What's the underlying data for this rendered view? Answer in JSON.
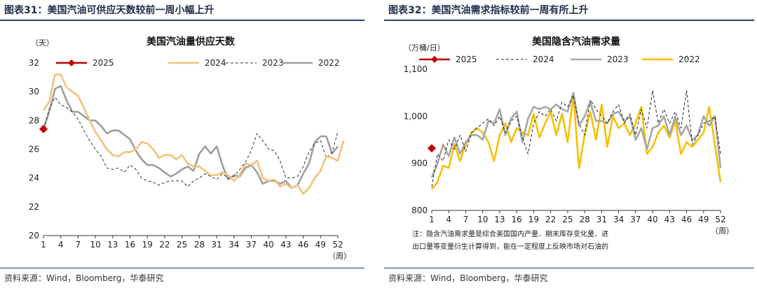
{
  "left": {
    "figure_title": "图表31：美国汽油可供应天数较前一周小幅上升",
    "source": "资料来源：Wind，Bloomberg，华泰研究",
    "unit_label": "（天）",
    "x_unit_label": "（周）"
  },
  "right": {
    "figure_title": "图表32：美国汽油需求指标较前一周有所上升",
    "source": "资料来源：Wind，Bloomberg，华泰研究",
    "unit_label": "（万桶/日）",
    "x_unit_label": "（周）",
    "note_line1": "注：隐含汽油需求量是综合美国国内产量、期末库存变化量、进",
    "note_line2": "出口量等变量衍生计算得到，能在一定程度上反映市场对石油的"
  },
  "chart_data": [
    {
      "type": "line",
      "title": "美国汽油量供应天数",
      "xlabel": "周",
      "ylabel": "天",
      "xlim": [
        1,
        52
      ],
      "ylim": [
        20,
        32
      ],
      "yticks": [
        20,
        22,
        24,
        26,
        28,
        30,
        32
      ],
      "xticks": [
        1,
        4,
        7,
        10,
        13,
        16,
        19,
        22,
        25,
        28,
        31,
        34,
        37,
        40,
        43,
        46,
        49,
        52
      ],
      "legend": [
        "2025",
        "2024",
        "2023",
        "2022"
      ],
      "series": [
        {
          "name": "2025",
          "color": "#c00000",
          "style": "marker",
          "values": [
            27.4
          ]
        },
        {
          "name": "2024",
          "color": "#f2c27a",
          "style": "solid",
          "values": [
            28.7,
            29.3,
            31.2,
            31.2,
            30.3,
            30.0,
            29.7,
            28.9,
            28.0,
            27.2,
            26.6,
            26.0,
            25.6,
            25.5,
            25.8,
            25.8,
            26.0,
            26.5,
            26.4,
            26.0,
            25.4,
            25.6,
            25.6,
            25.3,
            25.6,
            25.0,
            24.8,
            24.8,
            24.5,
            24.2,
            24.2,
            24.4,
            24.2,
            23.8,
            24.2,
            25.0,
            24.9,
            25.2,
            24.0,
            23.8,
            23.9,
            23.4,
            23.6,
            23.3,
            23.5,
            22.9,
            23.3,
            24.0,
            24.5,
            25.5,
            25.4,
            25.2,
            26.6
          ]
        },
        {
          "name": "2023",
          "color": "#333333",
          "style": "dashed",
          "values": [
            27.4,
            28.8,
            29.6,
            29.1,
            28.9,
            28.6,
            28.1,
            27.3,
            26.6,
            26.0,
            25.5,
            24.7,
            24.6,
            24.7,
            24.4,
            24.9,
            24.6,
            24.0,
            23.8,
            23.7,
            23.5,
            23.7,
            23.8,
            23.8,
            23.8,
            23.4,
            23.8,
            24.0,
            24.3,
            24.1,
            23.9,
            24.3,
            24.0,
            24.1,
            24.6,
            25.1,
            25.9,
            27.1,
            26.6,
            26.0,
            25.9,
            25.2,
            24.0,
            24.0,
            24.1,
            24.8,
            25.8,
            26.4,
            26.6,
            25.4,
            25.8,
            27.2
          ]
        },
        {
          "name": "2022",
          "color": "#9e9e9e",
          "style": "solid",
          "values": [
            27.4,
            28.6,
            30.2,
            30.4,
            29.4,
            28.6,
            28.6,
            28.3,
            28.0,
            28.0,
            27.6,
            27.1,
            27.3,
            27.3,
            27.0,
            26.7,
            25.9,
            25.3,
            24.9,
            24.9,
            24.7,
            24.4,
            24.1,
            24.3,
            24.6,
            24.8,
            24.5,
            25.7,
            26.2,
            25.7,
            26.2,
            24.9,
            23.9,
            24.2,
            24.1,
            24.7,
            24.9,
            24.4,
            23.6,
            23.8,
            23.8,
            23.6,
            23.8,
            23.3,
            23.5,
            24.3,
            25.0,
            26.5,
            26.9,
            26.9,
            25.7,
            26.2
          ]
        }
      ]
    },
    {
      "type": "line",
      "title": "美国隐含汽油需求量",
      "xlabel": "周",
      "ylabel": "万桶/日",
      "xlim": [
        1,
        52
      ],
      "ylim": [
        800,
        1100
      ],
      "yticks": [
        800,
        900,
        1000,
        1100
      ],
      "ytick_labels": [
        "800",
        "900",
        "1,000",
        "1,100"
      ],
      "xticks": [
        1,
        4,
        7,
        10,
        13,
        16,
        19,
        22,
        25,
        28,
        31,
        34,
        37,
        40,
        43,
        46,
        49,
        52
      ],
      "legend": [
        "2025",
        "2024",
        "2023",
        "2022"
      ],
      "series": [
        {
          "name": "2025",
          "color": "#c00000",
          "style": "marker",
          "values": [
            932
          ]
        },
        {
          "name": "2024",
          "color": "#222222",
          "style": "dashed",
          "values": [
            850,
            920,
            905,
            950,
            930,
            960,
            925,
            965,
            975,
            985,
            995,
            980,
            1000,
            965,
            990,
            1000,
            955,
            920,
            985,
            1010,
            1000,
            1015,
            990,
            1030,
            1020,
            1045,
            985,
            960,
            1035,
            1015,
            1000,
            985,
            1010,
            1025,
            985,
            1005,
            960,
            1015,
            975,
            1055,
            985,
            1015,
            985,
            1010,
            975,
            1055,
            940,
            960,
            985,
            990,
            1000,
            920
          ]
        },
        {
          "name": "2023",
          "color": "#a6a6a6",
          "style": "solid",
          "values": [
            870,
            900,
            940,
            915,
            955,
            920,
            945,
            960,
            960,
            950,
            990,
            985,
            1015,
            960,
            995,
            1010,
            945,
            995,
            1020,
            1015,
            1020,
            1015,
            1025,
            1015,
            1010,
            1050,
            980,
            1000,
            1030,
            990,
            990,
            985,
            1005,
            1010,
            990,
            1000,
            950,
            975,
            930,
            975,
            980,
            1000,
            960,
            1000,
            960,
            980,
            950,
            960,
            1000,
            980,
            1000,
            890
          ]
        },
        {
          "name": "2022",
          "color": "#f5c000",
          "style": "solid",
          "values": [
            845,
            860,
            895,
            890,
            940,
            905,
            940,
            965,
            975,
            965,
            945,
            905,
            960,
            985,
            945,
            975,
            965,
            960,
            1005,
            955,
            985,
            1010,
            960,
            1005,
            945,
            1045,
            890,
            960,
            1010,
            950,
            1025,
            935,
            1000,
            975,
            985,
            960,
            985,
            1020,
            920,
            935,
            965,
            980,
            955,
            990,
            920,
            945,
            935,
            950,
            965,
            1020,
            940,
            860
          ]
        }
      ]
    }
  ]
}
